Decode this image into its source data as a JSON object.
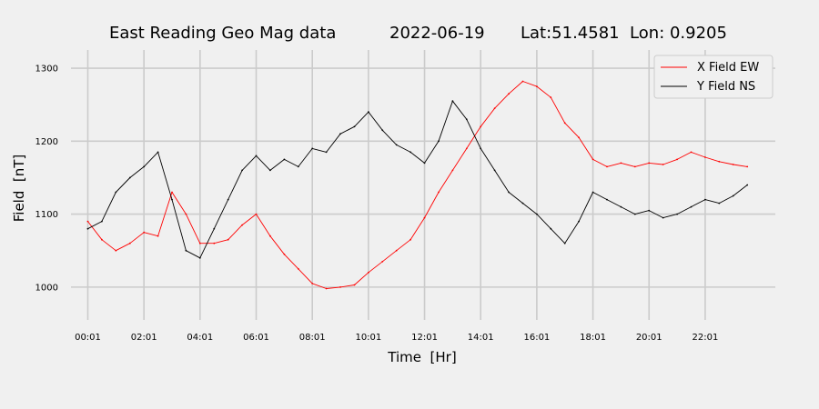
{
  "chart_data": {
    "type": "line",
    "title": "East Reading Geo Mag data",
    "date": "2022-06-19",
    "location": "Lat:51.4581  Lon: 0.9205",
    "xlabel": "Time  [Hr]",
    "ylabel": "Field  [nT]",
    "xlim": [
      -0.6,
      24.5
    ],
    "ylim": [
      955,
      1325
    ],
    "x_ticks": [
      0,
      2,
      4,
      6,
      8,
      10,
      12,
      14,
      16,
      18,
      20,
      22
    ],
    "x_tick_labels": [
      "00:01",
      "02:01",
      "04:01",
      "06:01",
      "08:01",
      "10:01",
      "12:01",
      "14:01",
      "16:01",
      "18:01",
      "20:01",
      "22:01"
    ],
    "y_ticks": [
      1000,
      1100,
      1200,
      1300
    ],
    "y_tick_labels": [
      "1000",
      "1100",
      "1200",
      "1300"
    ],
    "grid": true,
    "legend_position": "top-right",
    "series": [
      {
        "name": "X Field EW",
        "color": "#ff0000",
        "x": [
          0,
          0.5,
          1,
          1.5,
          2,
          2.5,
          3,
          3.5,
          4,
          4.5,
          5,
          5.5,
          6,
          6.5,
          7,
          7.5,
          8,
          8.5,
          9,
          9.5,
          10,
          10.5,
          11,
          11.5,
          12,
          12.5,
          13,
          13.5,
          14,
          14.5,
          15,
          15.5,
          16,
          16.5,
          17,
          17.5,
          18,
          18.5,
          19,
          19.5,
          20,
          20.5,
          21,
          21.5,
          22,
          22.5,
          23,
          23.5
        ],
        "y": [
          1090,
          1065,
          1050,
          1060,
          1075,
          1070,
          1130,
          1100,
          1060,
          1060,
          1065,
          1085,
          1100,
          1070,
          1045,
          1025,
          1005,
          998,
          1000,
          1003,
          1020,
          1035,
          1050,
          1065,
          1095,
          1130,
          1160,
          1190,
          1220,
          1245,
          1265,
          1282,
          1275,
          1260,
          1225,
          1205,
          1175,
          1165,
          1170,
          1165,
          1170,
          1168,
          1175,
          1185,
          1178,
          1172,
          1168,
          1165
        ]
      },
      {
        "name": "Y Field NS",
        "color": "#000000",
        "x": [
          0,
          0.5,
          1,
          1.5,
          2,
          2.5,
          3,
          3.5,
          4,
          4.5,
          5,
          5.5,
          6,
          6.5,
          7,
          7.5,
          8,
          8.5,
          9,
          9.5,
          10,
          10.5,
          11,
          11.5,
          12,
          12.5,
          13,
          13.5,
          14,
          14.5,
          15,
          15.5,
          16,
          16.5,
          17,
          17.5,
          18,
          18.5,
          19,
          19.5,
          20,
          20.5,
          21,
          21.5,
          22,
          22.5,
          23,
          23.5
        ],
        "y": [
          1080,
          1090,
          1130,
          1150,
          1165,
          1185,
          1120,
          1050,
          1040,
          1080,
          1120,
          1160,
          1180,
          1160,
          1175,
          1165,
          1190,
          1185,
          1210,
          1220,
          1240,
          1215,
          1195,
          1185,
          1170,
          1200,
          1255,
          1230,
          1190,
          1160,
          1130,
          1115,
          1100,
          1080,
          1060,
          1090,
          1130,
          1120,
          1110,
          1100,
          1105,
          1095,
          1100,
          1110,
          1120,
          1115,
          1125,
          1140
        ]
      }
    ]
  }
}
